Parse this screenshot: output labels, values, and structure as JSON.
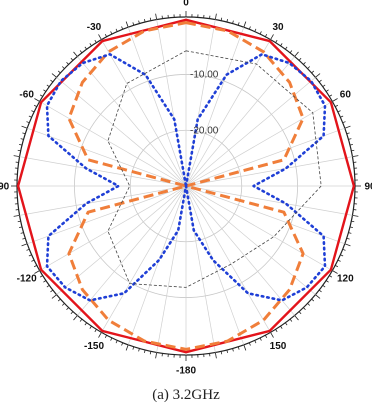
{
  "caption": "(a) 3.2GHz",
  "chart_data": {
    "type": "polar",
    "angle_ticks": [
      "0",
      "30",
      "60",
      "90",
      "120",
      "150",
      "-180",
      "-150",
      "-120",
      "-90",
      "-60",
      "-30"
    ],
    "angle_tick_values": [
      0,
      30,
      60,
      90,
      120,
      150,
      180,
      -150,
      -120,
      -90,
      -60,
      -30
    ],
    "radial_ticks": [
      "-10.00",
      "-20.00"
    ],
    "radial_range_db": [
      -30,
      0
    ],
    "grid": true,
    "series": [
      {
        "style": "solid",
        "color": "#e3141b",
        "angles": [
          0,
          30,
          60,
          90,
          120,
          150,
          180,
          210,
          240,
          270,
          300,
          330
        ],
        "values": [
          -0.5,
          -0.3,
          -0.3,
          -0.2,
          -0.3,
          -0.3,
          -0.5,
          -0.3,
          -0.3,
          -0.2,
          -0.3,
          -0.3
        ]
      },
      {
        "style": "dashed",
        "color": "#f07e3a",
        "angles": [
          0,
          15,
          30,
          45,
          60,
          75,
          90,
          105,
          120,
          135,
          150,
          165,
          180,
          195,
          210,
          225,
          240,
          255,
          270,
          285,
          300,
          315,
          330,
          345
        ],
        "values": [
          -1,
          -1.5,
          -2.5,
          -4,
          -6,
          -12,
          -30,
          -12,
          -6,
          -4,
          -2.5,
          -1.5,
          -1,
          -1.5,
          -2.5,
          -4,
          -6,
          -12,
          -30,
          -12,
          -6,
          -4,
          -2.5,
          -1.5
        ]
      },
      {
        "style": "dotted",
        "color": "#1f3fd6",
        "angles": [
          0,
          10,
          20,
          30,
          40,
          50,
          60,
          70,
          80,
          90,
          100,
          110,
          120,
          130,
          140,
          150,
          160,
          170,
          180,
          190,
          200,
          210,
          220,
          230,
          240,
          250,
          260,
          270,
          280,
          290,
          300,
          310,
          320,
          330,
          340,
          350
        ],
        "values": [
          -30,
          -18,
          -9,
          -3,
          -1.5,
          -1,
          -1.5,
          -4,
          -12,
          -18,
          -12,
          -4,
          -1.5,
          -2,
          -3.5,
          -8,
          -16,
          -22,
          -30,
          -22,
          -16,
          -8,
          -3.5,
          -2,
          -1.5,
          -4,
          -12,
          -18,
          -12,
          -4,
          -1.5,
          -1,
          -1.5,
          -3,
          -9,
          -18
        ]
      },
      {
        "style": "thin-dashed",
        "color": "#444444",
        "angles": [
          0,
          30,
          60,
          90,
          120,
          150,
          180,
          210,
          240,
          270,
          300,
          330
        ],
        "values": [
          -6,
          -5,
          -4,
          -6,
          -12,
          -14,
          -12,
          -10,
          -14,
          -20,
          -14,
          -9
        ]
      }
    ]
  }
}
